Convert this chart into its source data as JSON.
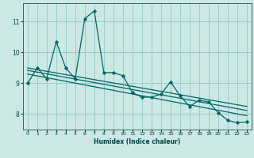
{
  "xlabel": "Humidex (Indice chaleur)",
  "bg_color": "#cce8e4",
  "grid_color": "#99cccc",
  "line_color": "#006666",
  "xlim": [
    -0.5,
    23.5
  ],
  "ylim": [
    7.5,
    11.6
  ],
  "yticks": [
    8,
    9,
    10,
    11
  ],
  "xticks": [
    0,
    1,
    2,
    3,
    4,
    5,
    6,
    7,
    8,
    9,
    10,
    11,
    12,
    13,
    14,
    15,
    16,
    17,
    18,
    19,
    20,
    21,
    22,
    23
  ],
  "series1_x": [
    0,
    1,
    2,
    3,
    4,
    5,
    6,
    7,
    8,
    9,
    10,
    11,
    12,
    13,
    14,
    15,
    16,
    17,
    18,
    19,
    20,
    21,
    22,
    23
  ],
  "series1_y": [
    9.0,
    9.5,
    9.15,
    10.35,
    9.5,
    9.15,
    11.1,
    11.35,
    9.35,
    9.35,
    9.25,
    8.7,
    8.55,
    8.55,
    8.65,
    9.05,
    8.6,
    8.25,
    8.45,
    8.4,
    8.05,
    7.8,
    7.72,
    7.75
  ],
  "trend1_x": [
    0,
    23
  ],
  "trend1_y": [
    9.5,
    8.25
  ],
  "trend2_x": [
    0,
    23
  ],
  "trend2_y": [
    9.42,
    8.12
  ],
  "trend3_x": [
    0,
    23
  ],
  "trend3_y": [
    9.3,
    7.95
  ]
}
